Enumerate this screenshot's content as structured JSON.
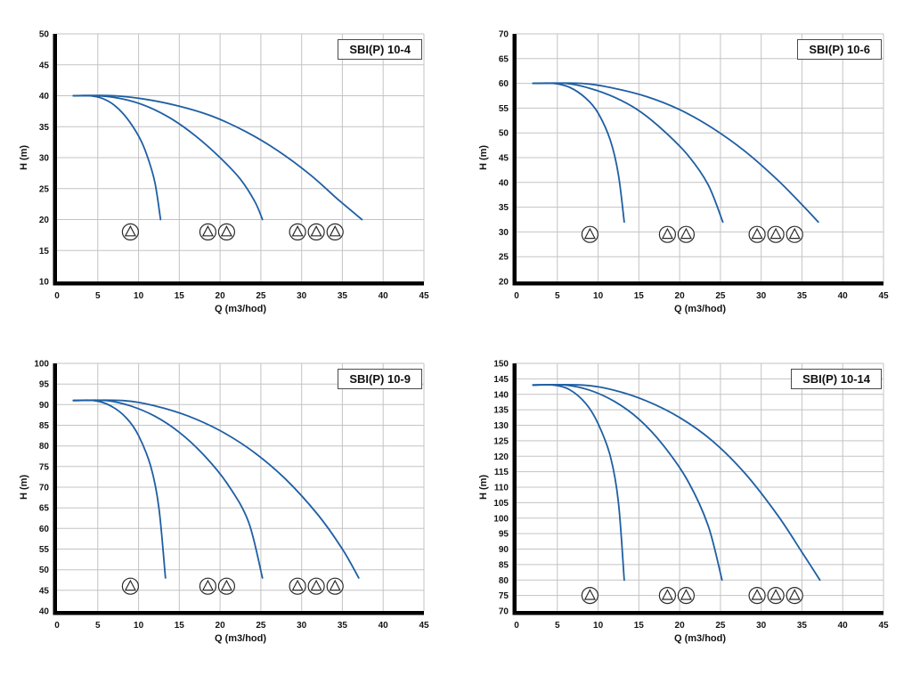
{
  "page": {
    "background": "#ffffff"
  },
  "chart_data": [
    {
      "type": "line",
      "title": "SBI(P) 10-4",
      "xlabel": "Q (m3/hod)",
      "ylabel": "H (m)",
      "xlim": [
        0,
        45
      ],
      "ylim": [
        10,
        50
      ],
      "xticks": [
        0,
        5,
        10,
        15,
        20,
        25,
        30,
        35,
        40,
        45
      ],
      "yticks": [
        10,
        15,
        20,
        25,
        30,
        35,
        40,
        45,
        50
      ],
      "grid": true,
      "legend": "none",
      "curve_color": "#1e5fa3",
      "grid_color": "#c3c3c3",
      "axis_color": "#000000",
      "series": [
        {
          "name": "1 pump",
          "points": [
            [
              2,
              40
            ],
            [
              4,
              40
            ],
            [
              5.5,
              39.6
            ],
            [
              7,
              38.5
            ],
            [
              8.5,
              36.5
            ],
            [
              10,
              33.5
            ],
            [
              11,
              30.5
            ],
            [
              12,
              26
            ],
            [
              12.7,
              20
            ]
          ]
        },
        {
          "name": "2 pumps",
          "points": [
            [
              2,
              40
            ],
            [
              5,
              40
            ],
            [
              8,
              39.5
            ],
            [
              11,
              38.3
            ],
            [
              14,
              36.3
            ],
            [
              17,
              33.5
            ],
            [
              20,
              30
            ],
            [
              22.5,
              26.5
            ],
            [
              24.3,
              22.8
            ],
            [
              25.2,
              20
            ]
          ]
        },
        {
          "name": "3 pumps",
          "points": [
            [
              2,
              40
            ],
            [
              7,
              40
            ],
            [
              11,
              39.4
            ],
            [
              15,
              38.3
            ],
            [
              19,
              36.7
            ],
            [
              23,
              34.3
            ],
            [
              27,
              31.2
            ],
            [
              31,
              27.3
            ],
            [
              34.5,
              23.2
            ],
            [
              37.4,
              20
            ]
          ]
        }
      ],
      "pump_icons": {
        "symbol": "circle-triangle",
        "y": 18,
        "groups": [
          [
            9
          ],
          [
            18.5,
            20.8
          ],
          [
            29.5,
            31.8,
            34.1
          ]
        ]
      }
    },
    {
      "type": "line",
      "title": "SBI(P) 10-6",
      "xlabel": "Q (m3/hod)",
      "ylabel": "H (m)",
      "xlim": [
        0,
        45
      ],
      "ylim": [
        20,
        70
      ],
      "xticks": [
        0,
        5,
        10,
        15,
        20,
        25,
        30,
        35,
        40,
        45
      ],
      "yticks": [
        20,
        25,
        30,
        35,
        40,
        45,
        50,
        55,
        60,
        65,
        70
      ],
      "grid": true,
      "legend": "none",
      "curve_color": "#1e5fa3",
      "grid_color": "#c3c3c3",
      "axis_color": "#000000",
      "series": [
        {
          "name": "1 pump",
          "points": [
            [
              2,
              60
            ],
            [
              4.5,
              60
            ],
            [
              6.5,
              59.2
            ],
            [
              8.5,
              57
            ],
            [
              10,
              54
            ],
            [
              11.5,
              48.5
            ],
            [
              12.5,
              41.5
            ],
            [
              13.2,
              32
            ]
          ]
        },
        {
          "name": "2 pumps",
          "points": [
            [
              2,
              60
            ],
            [
              6,
              60
            ],
            [
              9,
              59
            ],
            [
              12,
              57.2
            ],
            [
              15,
              54.5
            ],
            [
              18,
              50.5
            ],
            [
              21,
              45.5
            ],
            [
              23.5,
              39.5
            ],
            [
              25.3,
              32
            ]
          ]
        },
        {
          "name": "3 pumps",
          "points": [
            [
              2,
              60
            ],
            [
              8,
              60
            ],
            [
              12,
              59
            ],
            [
              16,
              57.3
            ],
            [
              20,
              54.7
            ],
            [
              24,
              51
            ],
            [
              28,
              46.3
            ],
            [
              32,
              40.5
            ],
            [
              35,
              35.5
            ],
            [
              37,
              32
            ]
          ]
        }
      ],
      "pump_icons": {
        "symbol": "circle-triangle",
        "y": 29.5,
        "groups": [
          [
            9
          ],
          [
            18.5,
            20.8
          ],
          [
            29.5,
            31.8,
            34.1
          ]
        ]
      }
    },
    {
      "type": "line",
      "title": "SBI(P) 10-9",
      "xlabel": "Q (m3/hod)",
      "ylabel": "H (m)",
      "xlim": [
        0,
        45
      ],
      "ylim": [
        40,
        100
      ],
      "xticks": [
        0,
        5,
        10,
        15,
        20,
        25,
        30,
        35,
        40,
        45
      ],
      "yticks": [
        40,
        45,
        50,
        55,
        60,
        65,
        70,
        75,
        80,
        85,
        90,
        95,
        100
      ],
      "grid": true,
      "legend": "none",
      "curve_color": "#1e5fa3",
      "grid_color": "#c3c3c3",
      "axis_color": "#000000",
      "series": [
        {
          "name": "1 pump",
          "points": [
            [
              2,
              91
            ],
            [
              4.5,
              91
            ],
            [
              6.5,
              89.8
            ],
            [
              8.5,
              86.8
            ],
            [
              10,
              82.5
            ],
            [
              11.5,
              75
            ],
            [
              12.5,
              65
            ],
            [
              13.3,
              48
            ]
          ]
        },
        {
          "name": "2 pumps",
          "points": [
            [
              2,
              91
            ],
            [
              6,
              91
            ],
            [
              9,
              89.7
            ],
            [
              12,
              87.2
            ],
            [
              15,
              83.3
            ],
            [
              18,
              77.8
            ],
            [
              21,
              70.5
            ],
            [
              23.5,
              61.5
            ],
            [
              25.2,
              48
            ]
          ]
        },
        {
          "name": "3 pumps",
          "points": [
            [
              2,
              91
            ],
            [
              8,
              91
            ],
            [
              12,
              89.7
            ],
            [
              16,
              87.3
            ],
            [
              20,
              83.7
            ],
            [
              24,
              78.7
            ],
            [
              28,
              72
            ],
            [
              32,
              63.3
            ],
            [
              35,
              55
            ],
            [
              37,
              48
            ]
          ]
        }
      ],
      "pump_icons": {
        "symbol": "circle-triangle",
        "y": 46,
        "groups": [
          [
            9
          ],
          [
            18.5,
            20.8
          ],
          [
            29.5,
            31.8,
            34.1
          ]
        ]
      }
    },
    {
      "type": "line",
      "title": "SBI(P) 10-14",
      "xlabel": "Q (m3/hod)",
      "ylabel": "H (m)",
      "xlim": [
        0,
        45
      ],
      "ylim": [
        70,
        150
      ],
      "xticks": [
        0,
        5,
        10,
        15,
        20,
        25,
        30,
        35,
        40,
        45
      ],
      "yticks": [
        70,
        75,
        80,
        85,
        90,
        95,
        100,
        105,
        110,
        115,
        120,
        125,
        130,
        135,
        140,
        145,
        150
      ],
      "grid": true,
      "legend": "none",
      "curve_color": "#1e5fa3",
      "grid_color": "#c3c3c3",
      "axis_color": "#000000",
      "series": [
        {
          "name": "1 pump",
          "points": [
            [
              2,
              143
            ],
            [
              4.5,
              143
            ],
            [
              6.5,
              141.5
            ],
            [
              8.5,
              137
            ],
            [
              10,
              130.5
            ],
            [
              11.5,
              120
            ],
            [
              12.5,
              105
            ],
            [
              13.2,
              80
            ]
          ]
        },
        {
          "name": "2 pumps",
          "points": [
            [
              2,
              143
            ],
            [
              6,
              143
            ],
            [
              9,
              141.3
            ],
            [
              12,
              137.7
            ],
            [
              15,
              132
            ],
            [
              18,
              123.5
            ],
            [
              21,
              112
            ],
            [
              23.5,
              97.5
            ],
            [
              25.2,
              80
            ]
          ]
        },
        {
          "name": "3 pumps",
          "points": [
            [
              2,
              143
            ],
            [
              8,
              143
            ],
            [
              12,
              141.3
            ],
            [
              16,
              137.8
            ],
            [
              20,
              132.5
            ],
            [
              24,
              125
            ],
            [
              28,
              114.5
            ],
            [
              32,
              101
            ],
            [
              35,
              89
            ],
            [
              37.2,
              80
            ]
          ]
        }
      ],
      "pump_icons": {
        "symbol": "circle-triangle",
        "y": 75,
        "groups": [
          [
            9
          ],
          [
            18.5,
            20.8
          ],
          [
            29.5,
            31.8,
            34.1
          ]
        ]
      }
    }
  ]
}
